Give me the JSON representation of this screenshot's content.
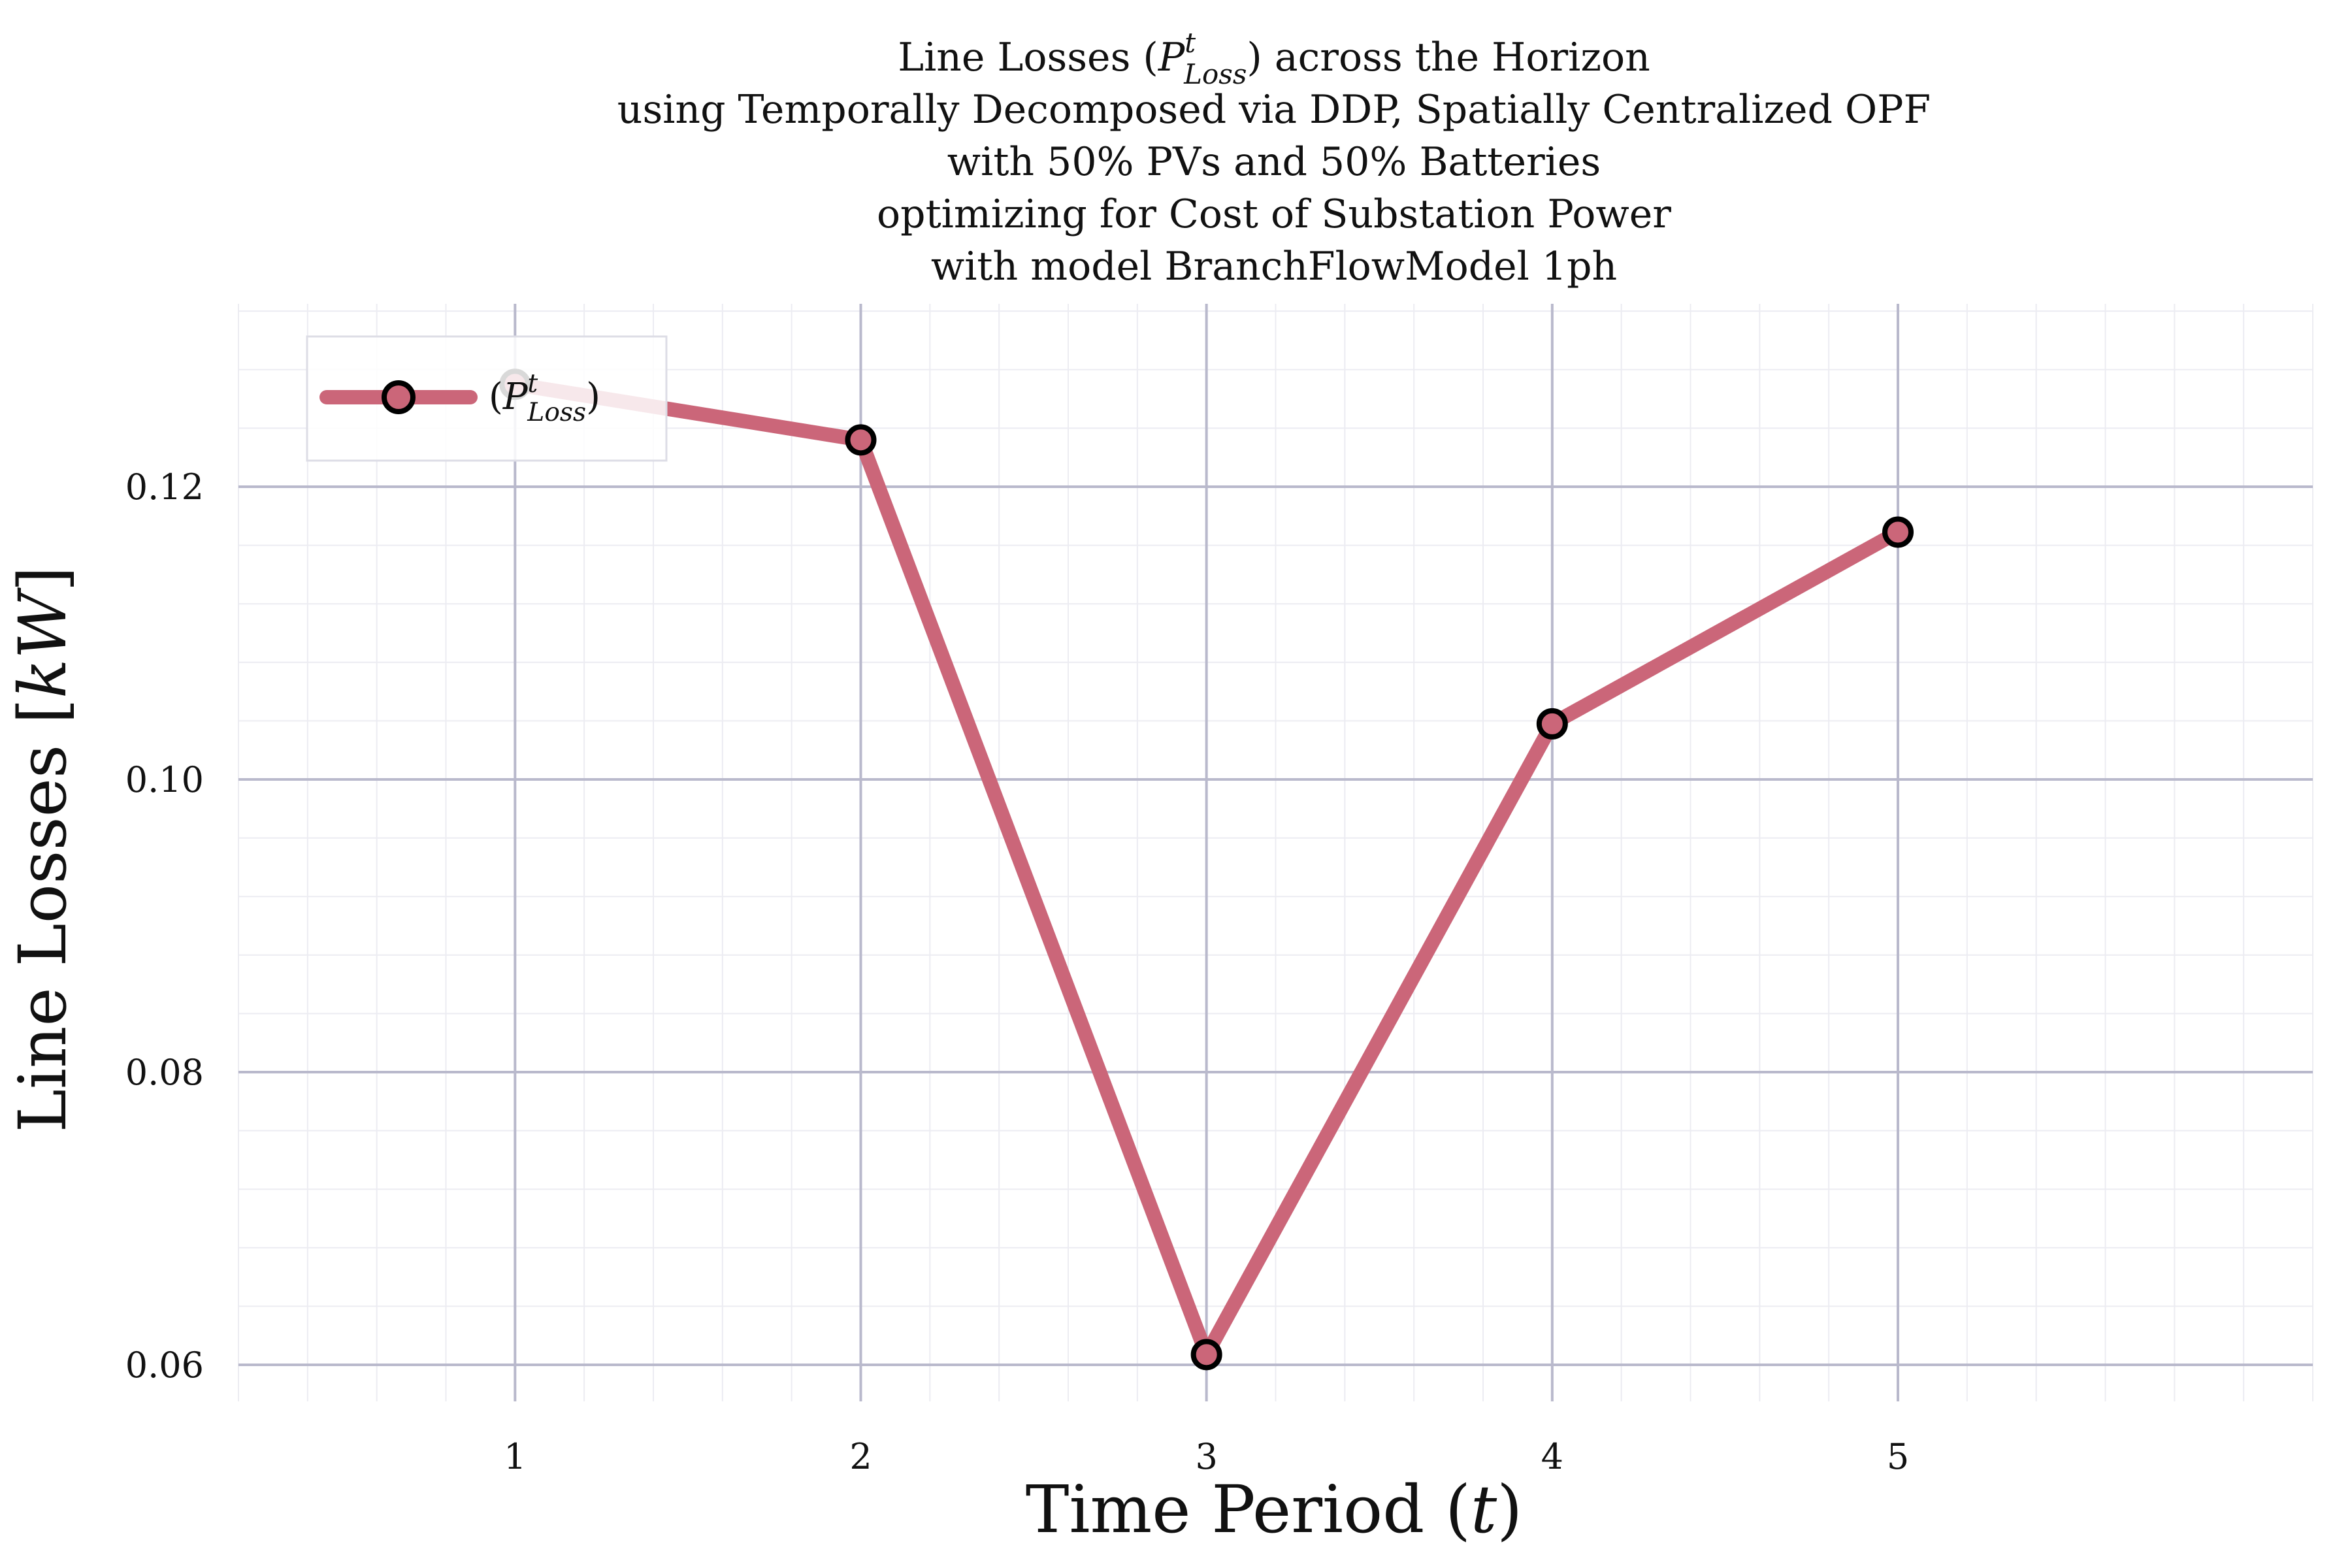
{
  "chart_data": {
    "type": "line",
    "title_lines": [
      "Line Losses (P_Loss^t) across the Horizon",
      "using Temporally Decomposed via DDP, Spatially Centralized OPF",
      "with 50% PVs and 50% Batteries",
      "optimizing for Cost of Substation Power",
      "with model BranchFlowModel 1ph"
    ],
    "title_prefix": "Line Losses (",
    "title_symbol": "P",
    "title_sup": "t",
    "title_sub": "Loss",
    "title_suffix": ") across the Horizon",
    "xlabel_text": "Time Period (",
    "xlabel_var": "t",
    "xlabel_close": ")",
    "ylabel_text": "Line Losses [",
    "ylabel_unit": "kW",
    "ylabel_close": "]",
    "x_ticks": [
      1,
      2,
      3,
      4,
      5
    ],
    "y_ticks": [
      "0.06",
      "0.08",
      "0.10",
      "0.12"
    ],
    "xlim": [
      0.2,
      6.2
    ],
    "ylim": [
      0.0575,
      0.1325
    ],
    "grid": true,
    "legend_position": "top-left",
    "series": [
      {
        "name": "(P_Loss^t)",
        "color": "#CB6679",
        "marker_edge": "#000000",
        "x": [
          1,
          2,
          3,
          4,
          5
        ],
        "y": [
          0.127,
          0.1232,
          0.0607,
          0.1038,
          0.1169
        ]
      }
    ],
    "legend_entry_open": "(",
    "legend_symbol": "P",
    "legend_sup": "t",
    "legend_sub": "Loss",
    "legend_entry_close": ")",
    "colors": {
      "grid_major": "#b9b9cc",
      "grid_minor": "#ececf2",
      "line": "#CB6679"
    }
  }
}
